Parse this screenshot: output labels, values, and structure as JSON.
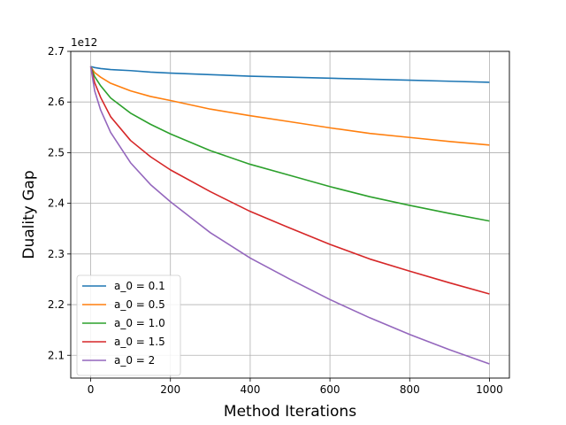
{
  "chart_data": {
    "type": "line",
    "title": "",
    "xlabel": "Method Iterations",
    "ylabel": "Duality Gap",
    "offset_text": "1e12",
    "xlim": [
      -50,
      1050
    ],
    "ylim": [
      2.055,
      2.7
    ],
    "xticks": [
      0,
      200,
      400,
      600,
      800,
      1000
    ],
    "xtick_labels": [
      "0",
      "200",
      "400",
      "600",
      "800",
      "1000"
    ],
    "yticks": [
      2.1,
      2.2,
      2.3,
      2.4,
      2.5,
      2.6,
      2.7
    ],
    "ytick_labels": [
      "2.1",
      "2.2",
      "2.3",
      "2.4",
      "2.5",
      "2.6",
      "2.7"
    ],
    "grid": true,
    "legend_position": "lower-left",
    "x": [
      0,
      10,
      25,
      50,
      100,
      150,
      200,
      300,
      400,
      500,
      600,
      700,
      800,
      900,
      1000
    ],
    "series": [
      {
        "name": "a_0 = 0.1",
        "color": "#1f77b4",
        "values": [
          2.67,
          2.668,
          2.666,
          2.664,
          2.662,
          2.659,
          2.657,
          2.654,
          2.651,
          2.649,
          2.647,
          2.645,
          2.643,
          2.641,
          2.639
        ]
      },
      {
        "name": "a_0 = 0.5",
        "color": "#ff7f0e",
        "values": [
          2.67,
          2.658,
          2.649,
          2.637,
          2.622,
          2.611,
          2.603,
          2.586,
          2.573,
          2.561,
          2.549,
          2.538,
          2.53,
          2.522,
          2.515
        ]
      },
      {
        "name": "a_0 = 1.0",
        "color": "#2ca02c",
        "values": [
          2.67,
          2.65,
          2.632,
          2.608,
          2.578,
          2.556,
          2.537,
          2.504,
          2.477,
          2.455,
          2.433,
          2.413,
          2.396,
          2.38,
          2.365
        ]
      },
      {
        "name": "a_0 = 1.5",
        "color": "#d62728",
        "values": [
          2.67,
          2.638,
          2.609,
          2.571,
          2.524,
          2.492,
          2.466,
          2.423,
          2.384,
          2.351,
          2.319,
          2.29,
          2.266,
          2.243,
          2.221
        ]
      },
      {
        "name": "a_0 = 2",
        "color": "#9467bd",
        "values": [
          2.67,
          2.622,
          2.584,
          2.54,
          2.48,
          2.437,
          2.403,
          2.342,
          2.292,
          2.25,
          2.21,
          2.174,
          2.141,
          2.111,
          2.083
        ]
      }
    ]
  }
}
